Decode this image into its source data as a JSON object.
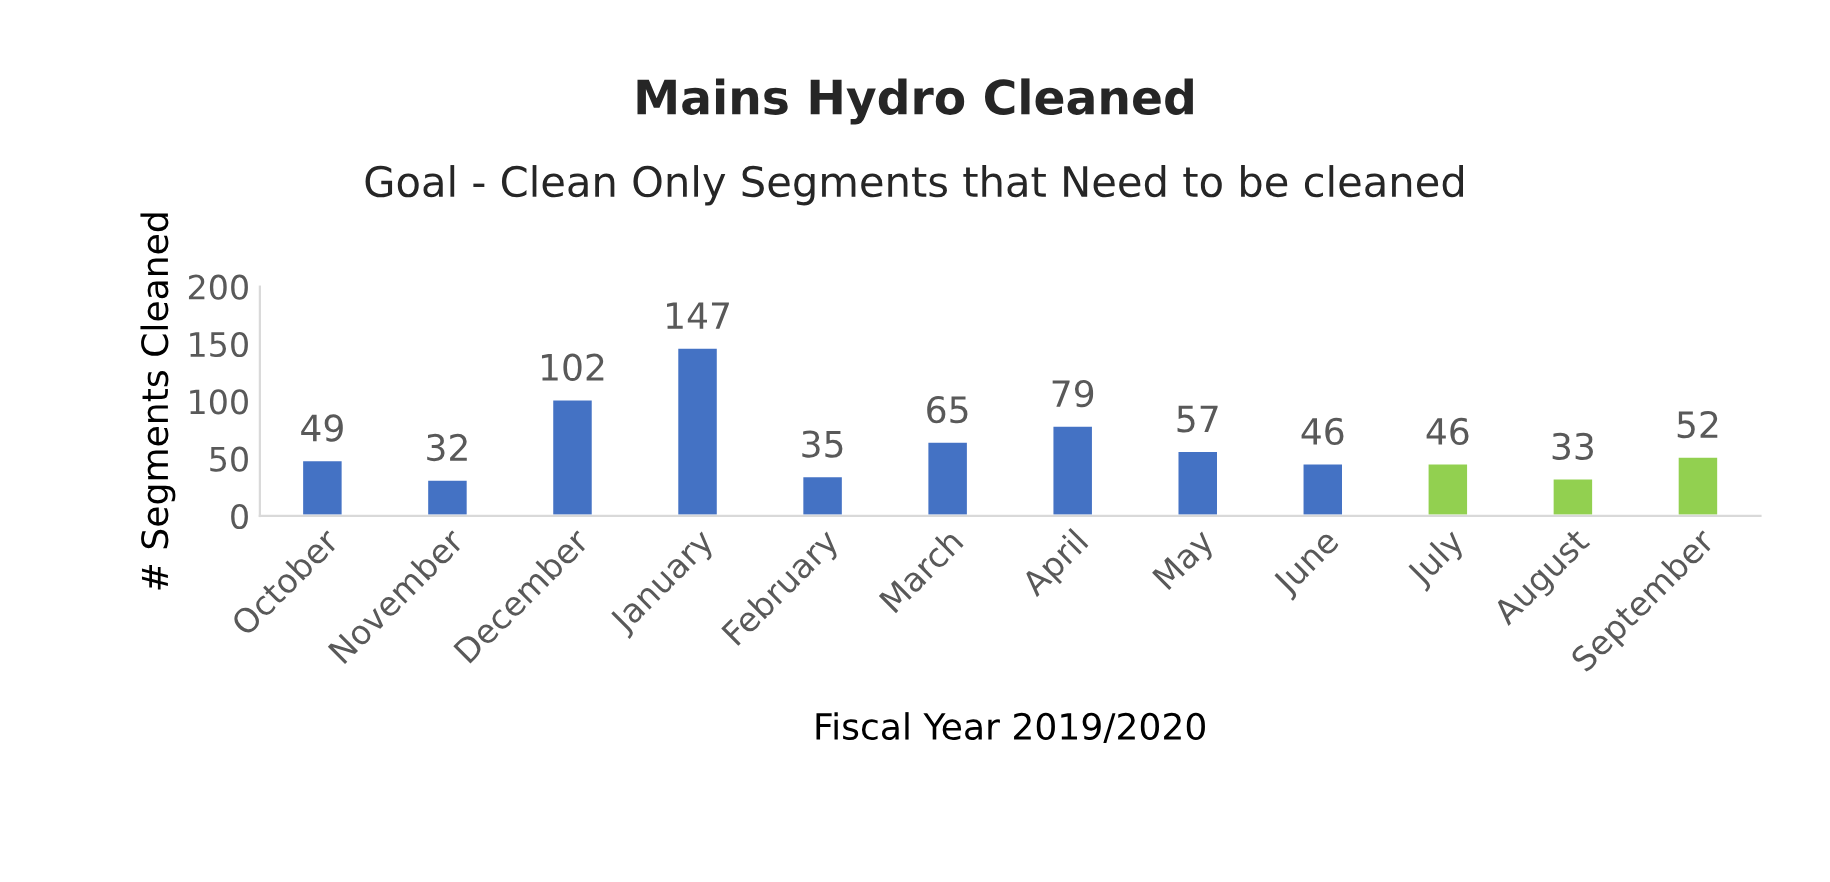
{
  "chart_data": {
    "type": "bar",
    "title": "Mains Hydro Cleaned",
    "subtitle": "Goal - Clean Only Segments that Need to be cleaned",
    "xlabel": "Fiscal Year 2019/2020",
    "ylabel": "# Segments Cleaned",
    "categories": [
      "October",
      "November",
      "December",
      "January",
      "February",
      "March",
      "April",
      "May",
      "June",
      "July",
      "August",
      "September"
    ],
    "values": [
      49,
      32,
      102,
      147,
      35,
      65,
      79,
      57,
      46,
      46,
      33,
      52
    ],
    "colors": [
      "#4472c4",
      "#4472c4",
      "#4472c4",
      "#4472c4",
      "#4472c4",
      "#4472c4",
      "#4472c4",
      "#4472c4",
      "#4472c4",
      "#92d050",
      "#92d050",
      "#92d050"
    ],
    "ylim": [
      0,
      200
    ],
    "yticks": [
      0,
      50,
      100,
      150,
      200
    ],
    "data_labels": true,
    "grid": false,
    "legend": false
  }
}
